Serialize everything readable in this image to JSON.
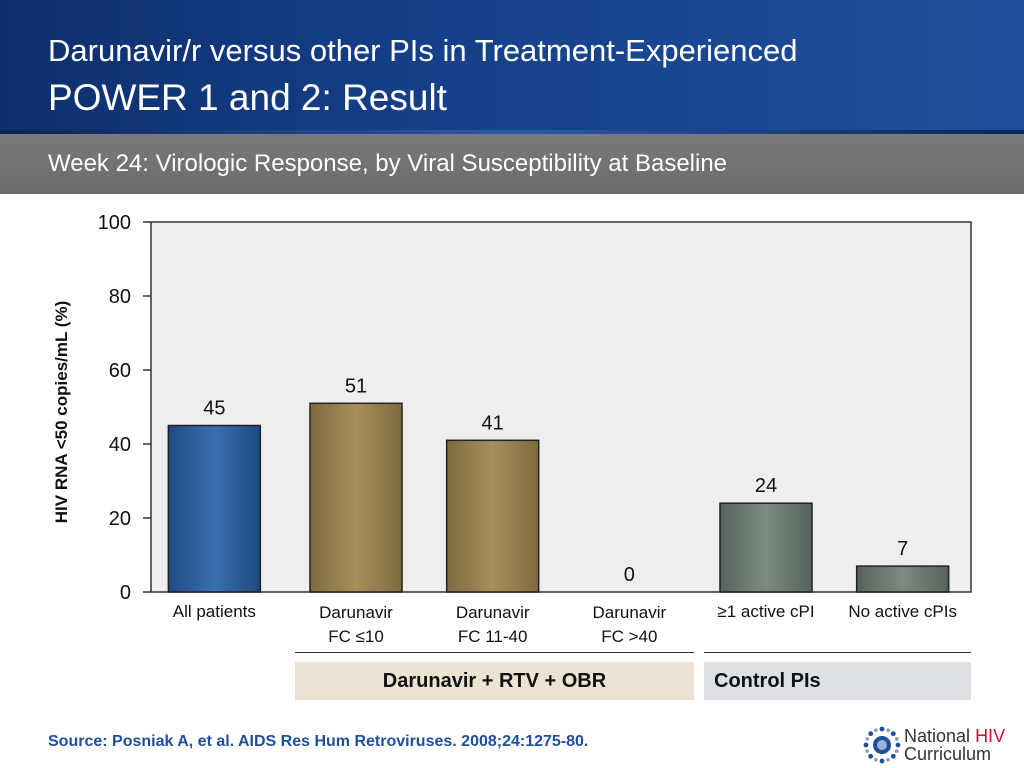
{
  "header": {
    "title_line1": "Darunavir/r versus other PIs in Treatment-Experienced",
    "title_line2": "POWER 1 and 2: Result",
    "subtitle": "Week 24: Virologic Response, by Viral Susceptibility at Baseline"
  },
  "colors": {
    "header_bg": "#16418a",
    "subbar_bg": "#707070",
    "bar_blue": "#2e5d9a",
    "bar_tan": "#9b8554",
    "bar_gray": "#6f7d76",
    "group_darunavir_bg": "#ece4d3",
    "group_control_bg": "#dde1e6",
    "source_text": "#1f4f9c"
  },
  "chart_data": {
    "type": "bar",
    "title": "",
    "ylabel": "HIV RNA <50 copies/mL (%)",
    "xlabel": "",
    "ylim": [
      0,
      100
    ],
    "yticks": [
      0,
      20,
      40,
      60,
      80,
      100
    ],
    "grid": false,
    "categories": [
      [
        "All patients"
      ],
      [
        "Darunavir",
        "FC ≤10"
      ],
      [
        "Darunavir",
        "FC 11-40"
      ],
      [
        "Darunavir",
        "FC >40"
      ],
      [
        "≥1 active cPI"
      ],
      [
        "No active cPIs"
      ]
    ],
    "values": [
      45,
      51,
      41,
      0,
      24,
      7
    ],
    "data_labels": [
      "45",
      "51",
      "41",
      "0",
      "24",
      "7"
    ],
    "bar_colors": [
      "#2e5d9a",
      "#9b8554",
      "#9b8554",
      "#9b8554",
      "#6f7d76",
      "#6f7d76"
    ],
    "groups": [
      {
        "label": "Darunavir + RTV + OBR",
        "categories": [
          1,
          2,
          3
        ]
      },
      {
        "label": "Control PIs",
        "categories": [
          4,
          5
        ]
      }
    ]
  },
  "footer": {
    "source": "Source: Posniak A, et al. AIDS Res Hum Retroviruses. 2008;24:1275-80."
  },
  "logo": {
    "icon": "sunburst-logo-icon",
    "line1_word": "National",
    "line1_highlight": "HIV",
    "line2": "Curriculum"
  }
}
